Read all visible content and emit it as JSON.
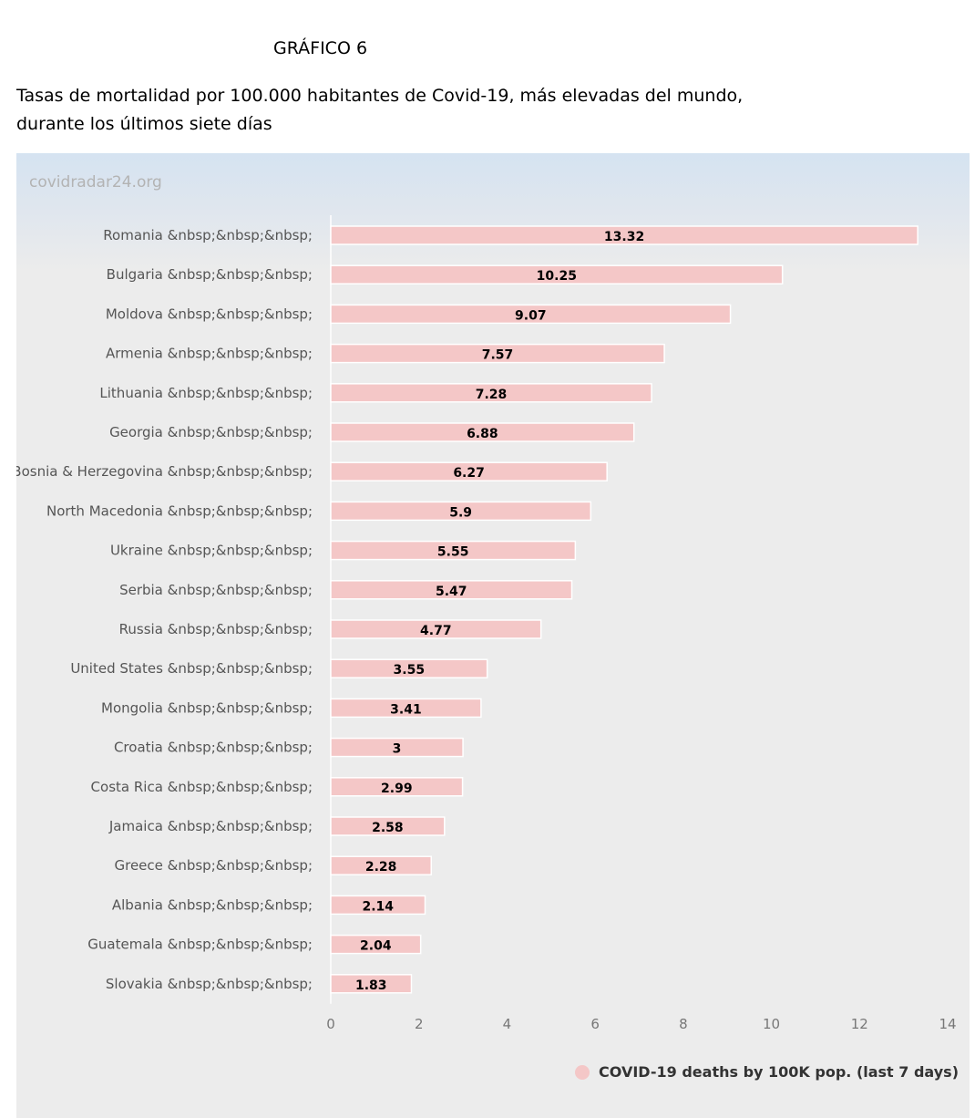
{
  "figure_label": "GRÁFICO 6",
  "title_lines": [
    "Tasas de mortalidad por 100.000 habitantes de Covid-19, más elevadas del mundo,",
    "durante los últimos siete días"
  ],
  "watermark": "covidradar24.org",
  "colors": {
    "bar_fill": "#f4c7c7",
    "bar_stroke": "#ffffff",
    "legend_dot": "#f4c7c7"
  },
  "chart_data": {
    "type": "bar",
    "orientation": "horizontal",
    "categories": [
      "Romania &nbsp;&nbsp;&nbsp;",
      "Bulgaria &nbsp;&nbsp;&nbsp;",
      "Moldova &nbsp;&nbsp;&nbsp;",
      "Armenia &nbsp;&nbsp;&nbsp;",
      "Lithuania &nbsp;&nbsp;&nbsp;",
      "Georgia &nbsp;&nbsp;&nbsp;",
      "Bosnia & Herzegovina &nbsp;&nbsp;&nbsp;",
      "North Macedonia &nbsp;&nbsp;&nbsp;",
      "Ukraine &nbsp;&nbsp;&nbsp;",
      "Serbia &nbsp;&nbsp;&nbsp;",
      "Russia &nbsp;&nbsp;&nbsp;",
      "United States &nbsp;&nbsp;&nbsp;",
      "Mongolia &nbsp;&nbsp;&nbsp;",
      "Croatia &nbsp;&nbsp;&nbsp;",
      "Costa Rica &nbsp;&nbsp;&nbsp;",
      "Jamaica &nbsp;&nbsp;&nbsp;",
      "Greece &nbsp;&nbsp;&nbsp;",
      "Albania &nbsp;&nbsp;&nbsp;",
      "Guatemala &nbsp;&nbsp;&nbsp;",
      "Slovakia &nbsp;&nbsp;&nbsp;"
    ],
    "series": [
      {
        "name": "COVID-19 deaths by 100K pop. (last 7 days)",
        "values": [
          13.32,
          10.25,
          9.07,
          7.57,
          7.28,
          6.88,
          6.27,
          5.9,
          5.55,
          5.47,
          4.77,
          3.55,
          3.41,
          3,
          2.99,
          2.58,
          2.28,
          2.14,
          2.04,
          1.83
        ]
      }
    ],
    "xlim": [
      0,
      14
    ],
    "xticks": [
      0,
      2,
      4,
      6,
      8,
      10,
      12,
      14
    ],
    "grid": false,
    "legend_position": "bottom-right"
  }
}
